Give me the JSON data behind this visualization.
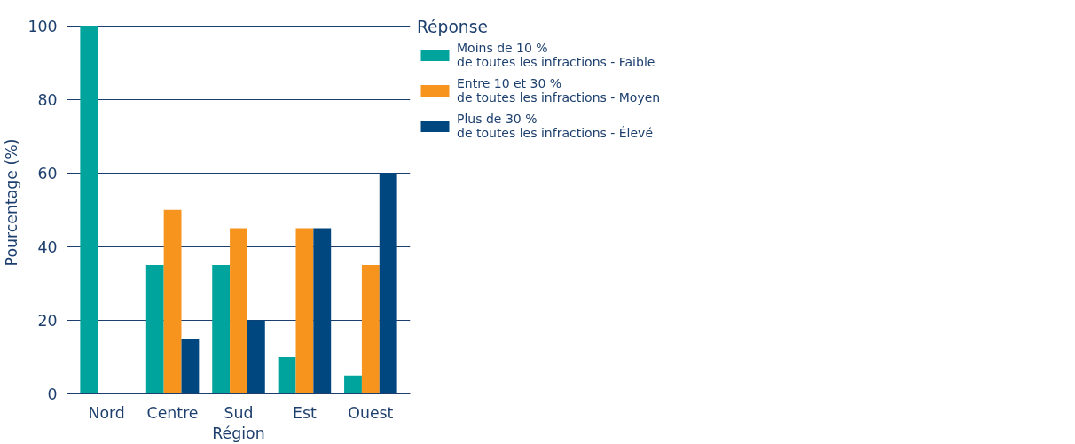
{
  "chart_data": {
    "type": "bar",
    "xlabel": "Région",
    "ylabel": "Pourcentage (%)",
    "legend_title": "Réponse",
    "categories": [
      "Nord",
      "Centre",
      "Sud",
      "Est",
      "Ouest"
    ],
    "series": [
      {
        "name": "Moins de 10 %\nde toutes les infractions - Faible",
        "color": "#00a49c",
        "values": [
          100,
          35,
          35,
          10,
          5
        ]
      },
      {
        "name": "Entre 10 et 30 %\nde toutes les infractions - Moyen",
        "color": "#f7941e",
        "values": [
          0,
          50,
          45,
          45,
          35
        ]
      },
      {
        "name": "Plus de 30 %\nde toutes les infractions - Élevé",
        "color": "#00467f",
        "values": [
          0,
          15,
          20,
          45,
          60
        ]
      }
    ],
    "ylim": [
      0,
      104
    ],
    "yticks": [
      0,
      20,
      40,
      60,
      80,
      100
    ],
    "grid": "y",
    "legend": "top right"
  }
}
